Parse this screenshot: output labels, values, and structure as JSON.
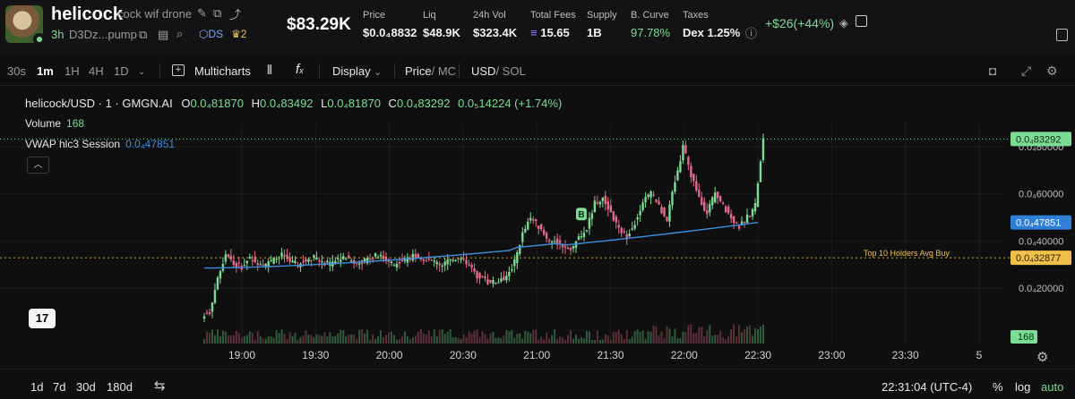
{
  "token": {
    "name": "helicock",
    "description": "cock wif drone",
    "age": "3h",
    "address": "D3Dz...pump",
    "ds_label": "DS",
    "holders_badge": "2"
  },
  "header": {
    "market_cap": "$83.29K",
    "stats": [
      {
        "label": "Price",
        "value": "$0.0₄8832"
      },
      {
        "label": "Liq",
        "value": "$48.9K"
      },
      {
        "label": "24h Vol",
        "value": "$323.4K"
      },
      {
        "label": "Total Fees",
        "value": "15.65"
      },
      {
        "label": "Supply",
        "value": "1B"
      },
      {
        "label": "B. Curve",
        "value": "97.78%"
      },
      {
        "label": "Taxes",
        "value": "Dex 1.25%"
      }
    ],
    "change": "+$26(+44%)"
  },
  "toolbar": {
    "intervals": [
      "30s",
      "1m",
      "1H",
      "4H",
      "1D"
    ],
    "active_interval": "1m",
    "multicharts": "Multicharts",
    "display": "Display",
    "price_label": "Price",
    "mc_label": "/ MC",
    "usd_label": "USD",
    "sol_label": "/ SOL"
  },
  "legend": {
    "symbol": "helicock/USD · 1 · GMGN.AI",
    "open": "0.0₄81870",
    "high": "0.0₄83492",
    "low": "0.0₄81870",
    "close": "0.0₄83292",
    "change": "0.0₅14224 (+1.74%)",
    "volume_label": "Volume",
    "volume_value": "168",
    "vwap_label": "VWAP hlc3 Session",
    "vwap_value": "0.0₄47851"
  },
  "axis": {
    "y_ticks": [
      "0.0₄80000",
      "0.0₄60000",
      "0.0₄40000",
      "0.0₄20000"
    ],
    "x_ticks": [
      "19:00",
      "19:30",
      "20:00",
      "20:30",
      "21:00",
      "21:30",
      "22:00",
      "22:30",
      "23:00",
      "23:30",
      "5"
    ],
    "last_price_tag": "0.0₄83292",
    "vwap_tag": "0.0₄47851",
    "avg_buy_tag": "0.0₄32877",
    "avg_buy_label": "Top 10 Holders Avg Buy",
    "volume_tag": "168",
    "buy_marker": "B"
  },
  "chart_data": {
    "type": "candlestick",
    "x_start": "18:45",
    "x_end": "22:30",
    "y_unit": "USD (x1e-4)",
    "close_series": [
      1.0,
      2.4,
      3.5,
      3.0,
      2.9,
      3.3,
      3.1,
      3.0,
      3.2,
      3.4,
      3.1,
      3.0,
      3.2,
      3.3,
      3.1,
      3.0,
      3.2,
      3.3,
      3.1,
      3.1,
      3.3,
      3.4,
      3.2,
      3.0,
      3.1,
      3.3,
      3.4,
      3.2,
      3.1,
      3.0,
      3.2,
      3.3,
      3.1,
      2.6,
      2.4,
      2.2,
      2.3,
      2.5,
      3.1,
      4.3,
      5.0,
      4.6,
      4.1,
      4.0,
      3.8,
      3.6,
      4.1,
      4.5,
      5.6,
      5.8,
      5.2,
      4.5,
      4.2,
      4.8,
      5.7,
      6.0,
      5.5,
      4.9,
      6.5,
      8.0,
      6.8,
      5.8,
      5.2,
      6.0,
      5.5,
      5.0,
      4.6,
      5.0,
      5.5,
      8.329
    ],
    "vwap": {
      "start": 2.85,
      "end": 4.7851
    },
    "avg_buy": 3.2877,
    "last": 8.3292,
    "grid": true
  },
  "footer": {
    "ranges": [
      "1d",
      "7d",
      "30d",
      "180d"
    ],
    "time": "22:31:04 (UTC-4)",
    "percent": "%",
    "log": "log",
    "auto": "auto"
  }
}
